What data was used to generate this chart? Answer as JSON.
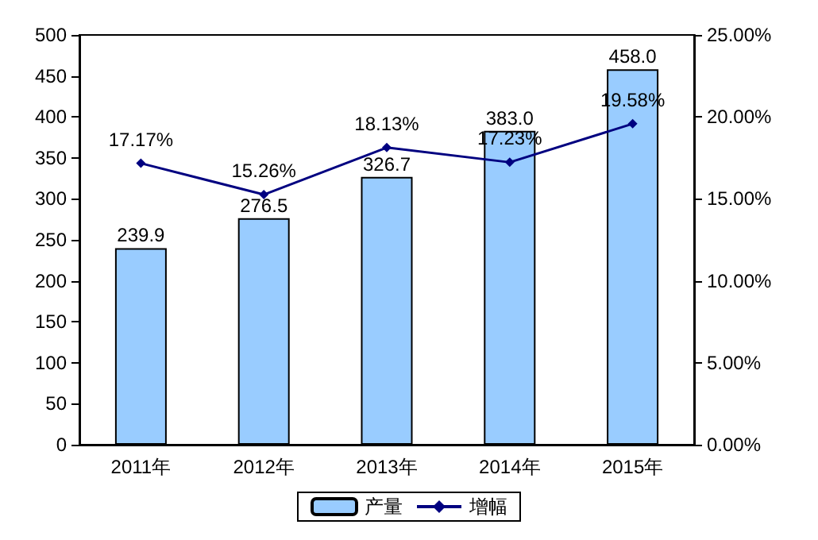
{
  "chart_data": {
    "type": "bar",
    "categories": [
      "2011年",
      "2012年",
      "2013年",
      "2014年",
      "2015年"
    ],
    "series": [
      {
        "name": "产量",
        "type": "bar",
        "color": "#99ccff",
        "values": [
          239.9,
          276.5,
          326.7,
          383.0,
          458.0
        ],
        "value_labels": [
          "239.9",
          "276.5",
          "326.7",
          "383.0",
          "458.0"
        ]
      },
      {
        "name": "增幅",
        "type": "line",
        "axis": "y2",
        "color": "#000080",
        "values": [
          17.17,
          15.26,
          18.13,
          17.23,
          19.58
        ],
        "value_labels": [
          "17.17%",
          "15.26%",
          "18.13%",
          "17.23%",
          "19.58%"
        ]
      }
    ],
    "ylim": [
      0,
      500
    ],
    "yticks": [
      0,
      50,
      100,
      150,
      200,
      250,
      300,
      350,
      400,
      450,
      500
    ],
    "y2lim": [
      0,
      25
    ],
    "y2ticks": [
      {
        "value": 0,
        "label": "0.00%"
      },
      {
        "value": 5,
        "label": "5.00%"
      },
      {
        "value": 10,
        "label": "10.00%"
      },
      {
        "value": 15,
        "label": "15.00%"
      },
      {
        "value": 20,
        "label": "20.00%"
      },
      {
        "value": 25,
        "label": "25.00%"
      }
    ],
    "grid": false,
    "legend": "bottom",
    "marker": "diamond",
    "line_style": "solid"
  }
}
